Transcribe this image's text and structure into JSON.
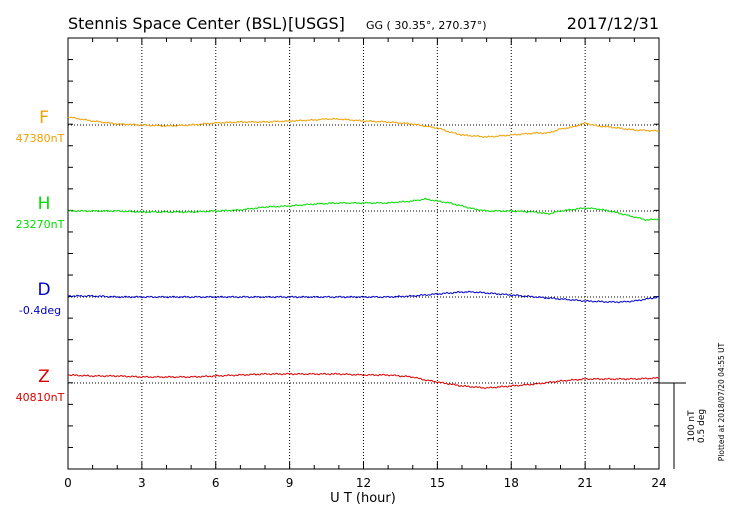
{
  "header": {
    "station": "Stennis Space Center (BSL)",
    "source": "[USGS]",
    "coords": "GG ( 30.35°, 270.37°)",
    "date": "2017/12/31"
  },
  "side_note": "Plotted at 2018/07/20 04:55 UT",
  "scale_bar": {
    "line1": "100 nT",
    "line2": "0.5 deg"
  },
  "chart_data": {
    "type": "line",
    "xlabel": "U T (hour)",
    "xlim": [
      0,
      24
    ],
    "x_ticks": [
      "0",
      "3",
      "6",
      "9",
      "12",
      "15",
      "18",
      "21",
      "24"
    ],
    "grid": true,
    "series": [
      {
        "name": "F",
        "baseline_label": "47380nT",
        "color": "#f0a000",
        "x": [
          0,
          1,
          2,
          3,
          4,
          5,
          6,
          7,
          8,
          9,
          10,
          10.5,
          11,
          12,
          13,
          14,
          15,
          15.5,
          16,
          16.5,
          17,
          17.5,
          18,
          18.5,
          19,
          19.5,
          20,
          20.5,
          21,
          21.5,
          22,
          23,
          24
        ],
        "y": [
          8,
          4,
          1,
          0,
          -1,
          0,
          2,
          3,
          3,
          4,
          5,
          6,
          6,
          4,
          3,
          1,
          -3,
          -7,
          -10,
          -11,
          -12,
          -11,
          -10,
          -9,
          -8,
          -8,
          -4,
          -2,
          2,
          -1,
          -2,
          -5,
          -6
        ]
      },
      {
        "name": "H",
        "baseline_label": "23270nT",
        "color": "#00dd00",
        "x": [
          0,
          1,
          2,
          3,
          4,
          5,
          6,
          7,
          8,
          9,
          10,
          11,
          12,
          13,
          14,
          14.5,
          15,
          15.5,
          16,
          16.5,
          17,
          18,
          19,
          19.5,
          20,
          21,
          21.5,
          22,
          22.5,
          23,
          23.5,
          24
        ],
        "y": [
          0,
          0,
          0,
          -1,
          -1,
          -1,
          0,
          1,
          4,
          5,
          7,
          8,
          8,
          8,
          10,
          12,
          10,
          8,
          5,
          2,
          0,
          0,
          -1,
          -3,
          0,
          3,
          2,
          0,
          -3,
          -6,
          -9,
          -8
        ]
      },
      {
        "name": "D",
        "baseline_label": "-0.4deg",
        "color": "#0000cc",
        "x": [
          0,
          1,
          2,
          3,
          4,
          5,
          6,
          7,
          8,
          9,
          10,
          11,
          12,
          13,
          14,
          15,
          15.5,
          16,
          16.5,
          17,
          18,
          19,
          20,
          21,
          22,
          22.5,
          23,
          23.5,
          24
        ],
        "y": [
          1,
          1,
          0,
          0,
          0,
          0,
          0,
          0,
          0,
          0,
          0,
          0,
          0,
          0,
          1,
          3,
          4,
          5,
          5,
          4,
          2,
          0,
          -2,
          -4,
          -5,
          -5,
          -4,
          -2,
          0
        ]
      },
      {
        "name": "Z",
        "baseline_label": "40810nT",
        "color": "#dd0000",
        "x": [
          0,
          1,
          2,
          3,
          4,
          5,
          6,
          7,
          8,
          9,
          10,
          11,
          12,
          13,
          14,
          14.5,
          15,
          15.5,
          16,
          16.5,
          17,
          17.5,
          18,
          18.5,
          19,
          20,
          20.5,
          21,
          22,
          23,
          24
        ],
        "y": [
          8,
          7,
          7,
          6,
          6,
          6,
          7,
          8,
          9,
          9,
          9,
          9,
          8,
          8,
          6,
          3,
          1,
          -1,
          -3,
          -4,
          -5,
          -4,
          -3,
          -2,
          -1,
          2,
          3,
          4,
          4,
          4,
          5
        ]
      }
    ]
  }
}
